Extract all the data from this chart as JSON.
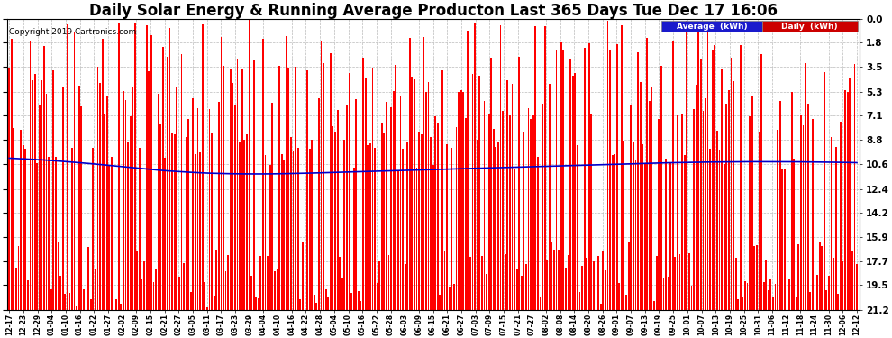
{
  "title": "Daily Solar Energy & Running Average Producton Last 365 Days Tue Dec 17 16:06",
  "copyright": "Copyright 2019 Cartronics.com",
  "ylabel_right": [
    "21.2",
    "19.5",
    "17.7",
    "15.9",
    "14.2",
    "12.4",
    "10.6",
    "8.8",
    "7.1",
    "5.3",
    "3.5",
    "1.8",
    "0.0"
  ],
  "ylim": [
    0.0,
    21.2
  ],
  "yticks": [
    0.0,
    1.8,
    3.5,
    5.3,
    7.1,
    8.8,
    10.6,
    12.4,
    14.2,
    15.9,
    17.7,
    19.5,
    21.2
  ],
  "bar_color": "#ff0000",
  "avg_color": "#0000cc",
  "background_color": "#ffffff",
  "grid_color": "#bbbbbb",
  "title_fontsize": 12,
  "bar_width": 0.7,
  "num_bars": 365,
  "avg_line": [
    11.05,
    11.0,
    10.95,
    10.88,
    10.8,
    10.72,
    10.63,
    10.53,
    10.43,
    10.33,
    10.23,
    10.14,
    10.07,
    10.01,
    9.96,
    9.93,
    9.91,
    9.9,
    9.9,
    9.91,
    9.93,
    9.95,
    9.98,
    10.01,
    10.04,
    10.07,
    10.1,
    10.13,
    10.16,
    10.19,
    10.22,
    10.25,
    10.28,
    10.31,
    10.34,
    10.37,
    10.4,
    10.43,
    10.46,
    10.49,
    10.52,
    10.55,
    10.58,
    10.61,
    10.64,
    10.67,
    10.7,
    10.72,
    10.74,
    10.76,
    10.77,
    10.78,
    10.79,
    10.79,
    10.79,
    10.79,
    10.78,
    10.77,
    10.76,
    10.74,
    10.72
  ],
  "x_labels": [
    "12-17",
    "12-23",
    "12-29",
    "01-04",
    "01-10",
    "01-16",
    "01-22",
    "01-27",
    "02-02",
    "02-09",
    "02-15",
    "02-21",
    "02-27",
    "03-05",
    "03-11",
    "03-17",
    "03-23",
    "03-29",
    "04-04",
    "04-10",
    "04-16",
    "04-22",
    "04-28",
    "05-04",
    "05-10",
    "05-16",
    "05-22",
    "05-28",
    "06-03",
    "06-09",
    "06-15",
    "06-21",
    "06-27",
    "07-03",
    "07-09",
    "07-15",
    "07-21",
    "07-27",
    "08-02",
    "08-08",
    "08-14",
    "08-20",
    "08-26",
    "09-01",
    "09-07",
    "09-13",
    "09-19",
    "09-25",
    "10-01",
    "10-07",
    "10-13",
    "10-19",
    "10-25",
    "10-31",
    "11-06",
    "11-12",
    "11-18",
    "11-24",
    "11-30",
    "12-06",
    "12-12"
  ],
  "seed": 42,
  "rainy_seed": 77
}
